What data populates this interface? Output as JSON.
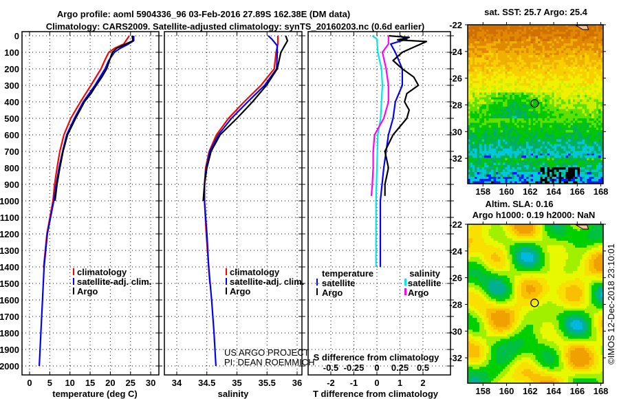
{
  "title": {
    "line1": "Argo profile: aoml 5904336_96 03-Feb-2016 27.89S 162.38E (DM data)",
    "line2": "Climatology: CARS2009. Satellite-adjusted climatology: synTS_20160203.nc (0.6d earlier)"
  },
  "colors": {
    "climatology": "#ff0000",
    "satellite": "#0000ff",
    "argo": "#000000",
    "sal_satellite": "#00e8e8",
    "sal_argo": "#ff00ff"
  },
  "credit": {
    "line1": "US ARGO PROJECT",
    "line2": "PI: DEAN ROEMMICH"
  },
  "stamp": "©IMOS 12-Dec-2018 23:10:01",
  "chart_data": [
    {
      "type": "line",
      "title": "",
      "xlabel": "temperature (deg C)",
      "ylabel": "",
      "xlim": [
        -1.9,
        32
      ],
      "ylim": [
        2054,
        -25
      ],
      "xticks": [
        0,
        5,
        10,
        15,
        20,
        25,
        30
      ],
      "yticks": [
        0,
        100,
        200,
        300,
        400,
        500,
        600,
        700,
        800,
        900,
        1000,
        1100,
        1200,
        1300,
        1400,
        1500,
        1600,
        1700,
        1800,
        1900,
        2000
      ],
      "grid": true,
      "legend": {
        "placement": "center-right",
        "entries": [
          "climatology",
          "satellite-adj. clim.",
          "Argo"
        ]
      },
      "series": [
        {
          "name": "climatology",
          "depth": [
            0,
            50,
            75,
            100,
            150,
            200,
            300,
            400,
            500,
            600,
            700,
            800,
            900,
            1000,
            1200,
            1400
          ],
          "values": [
            24.7,
            23.3,
            21.1,
            19.6,
            18.6,
            17.7,
            15.2,
            12.6,
            10.2,
            8.5,
            7.5,
            6.8,
            6.2,
            5.8,
            4.3,
            3.5
          ]
        },
        {
          "name": "satellite-adj. clim.",
          "depth": [
            0,
            30,
            50,
            75,
            100,
            150,
            200,
            300,
            400,
            500,
            600,
            700,
            800,
            900,
            1000,
            1200,
            1400,
            1600,
            1800,
            2000
          ],
          "values": [
            25.8,
            25.8,
            24.5,
            22.5,
            21.0,
            19.6,
            18.7,
            16.2,
            13.3,
            11.1,
            9.2,
            8.2,
            7.3,
            6.6,
            6.0,
            4.4,
            3.6,
            3.2,
            2.8,
            2.4
          ]
        },
        {
          "name": "Argo",
          "depth": [
            0,
            30,
            50,
            75,
            100,
            150,
            200,
            250,
            300,
            350,
            400,
            500,
            600,
            700,
            800,
            900,
            1000
          ],
          "values": [
            25.4,
            25.6,
            23.8,
            21.6,
            20.5,
            19.8,
            19.1,
            17.9,
            16.5,
            15.2,
            13.6,
            11.4,
            9.4,
            8.3,
            7.5,
            6.8,
            6.3
          ]
        }
      ]
    },
    {
      "type": "line",
      "xlabel": "salinity",
      "xlim": [
        33.79,
        36.08
      ],
      "ylim": [
        2054,
        -25
      ],
      "xticks": [
        34,
        34.5,
        35,
        35.5,
        36
      ],
      "grid": true,
      "legend": {
        "placement": "center-right",
        "entries": [
          "climatology",
          "satellite-adj. clim.",
          "Argo"
        ]
      },
      "series": [
        {
          "name": "climatology",
          "depth": [
            0,
            50,
            100,
            200,
            300,
            400,
            500,
            600,
            700,
            800,
            900,
            1000,
            1200,
            1400,
            1500
          ],
          "values": [
            35.68,
            35.68,
            35.65,
            35.62,
            35.4,
            35.12,
            34.86,
            34.66,
            34.54,
            34.48,
            34.46,
            34.46,
            34.49,
            34.53,
            34.55
          ]
        },
        {
          "name": "satellite-adj. clim.",
          "depth": [
            0,
            20,
            60,
            100,
            200,
            300,
            400,
            500,
            600,
            700,
            800,
            900,
            1000,
            1200,
            1400,
            1600,
            1800,
            2000
          ],
          "values": [
            35.52,
            35.58,
            35.67,
            35.67,
            35.66,
            35.46,
            35.18,
            34.91,
            34.69,
            34.55,
            34.49,
            34.46,
            34.46,
            34.5,
            34.53,
            34.58,
            34.62,
            34.65
          ]
        },
        {
          "name": "Argo",
          "depth": [
            0,
            30,
            100,
            200,
            300,
            400,
            500,
            600,
            700,
            800,
            900,
            1000
          ],
          "values": [
            35.81,
            35.84,
            35.73,
            35.67,
            35.49,
            35.26,
            35.0,
            34.72,
            34.57,
            34.5,
            34.46,
            34.44
          ]
        }
      ]
    },
    {
      "type": "line",
      "xlabel": "T difference from climatology",
      "x2label": "S difference from climatology",
      "xlim": [
        -3,
        3.2
      ],
      "x2lim": [
        -0.75,
        0.8
      ],
      "ylim": [
        2054,
        -25
      ],
      "xticks": [
        -2,
        -1,
        0,
        1,
        2
      ],
      "x2ticks": [
        -0.5,
        -0.25,
        0,
        0.25,
        0.5
      ],
      "grid": true,
      "legend": {
        "placement": "center",
        "temperature_title": "temperature",
        "salinity_title": "salinity",
        "entries": [
          "satellite",
          "Argo"
        ]
      },
      "series": [
        {
          "name": "temperature satellite",
          "axis": "T",
          "depth": [
            0,
            20,
            50,
            100,
            200,
            300,
            400,
            500,
            600,
            700,
            800,
            1000,
            1200,
            1400
          ],
          "values": [
            1.0,
            1.3,
            0.6,
            0.8,
            1.1,
            1.1,
            0.8,
            0.7,
            0.5,
            0.4,
            0.3,
            0.15,
            0.15,
            0.15
          ]
        },
        {
          "name": "temperature Argo",
          "axis": "T",
          "depth": [
            0,
            10,
            25,
            35,
            75,
            100,
            150,
            200,
            250,
            300,
            350,
            400,
            450,
            500,
            600,
            700,
            800,
            900,
            970
          ],
          "values": [
            0.5,
            1.4,
            0.9,
            2.15,
            1.5,
            1.1,
            0.7,
            1.1,
            1.6,
            1.8,
            1.3,
            1.2,
            1.4,
            1.3,
            0.7,
            0.35,
            0.5,
            0.35,
            0.35
          ]
        },
        {
          "name": "salinity satellite",
          "axis": "S",
          "depth": [
            0,
            20,
            100,
            200,
            300,
            400,
            500,
            600,
            800,
            1000,
            1400
          ],
          "values": [
            -0.05,
            0,
            0.01,
            0.05,
            0.06,
            0.05,
            0.04,
            0.01,
            0,
            -0.01,
            -0.01
          ]
        },
        {
          "name": "salinity Argo",
          "axis": "S",
          "depth": [
            0,
            50,
            100,
            200,
            300,
            400,
            500,
            600,
            700,
            800,
            900,
            970
          ],
          "values": [
            0.125,
            0.125,
            0.06,
            0.1,
            0.125,
            0.125,
            0.075,
            -0.025,
            -0.04,
            -0.04,
            -0.05,
            -0.06
          ]
        }
      ]
    }
  ],
  "maps": [
    {
      "title": "sat. SST: 25.7 Argo: 25.4",
      "lon_ticks": [
        158,
        160,
        162,
        164,
        166,
        168
      ],
      "lat_ticks": [
        -22,
        -24,
        -26,
        -28,
        -30,
        -32
      ],
      "float": {
        "lon": 162.38,
        "lat": -27.89
      }
    },
    {
      "title1": "Altim. SLA: 0.16",
      "title2": "Argo h1000: 0.19 h2000: NaN",
      "lon_ticks": [
        158,
        160,
        162,
        164,
        166,
        168
      ],
      "lat_ticks": [
        -22,
        -24,
        -26,
        -28,
        -30,
        -32
      ],
      "float": {
        "lon": 162.38,
        "lat": -27.89
      }
    }
  ]
}
